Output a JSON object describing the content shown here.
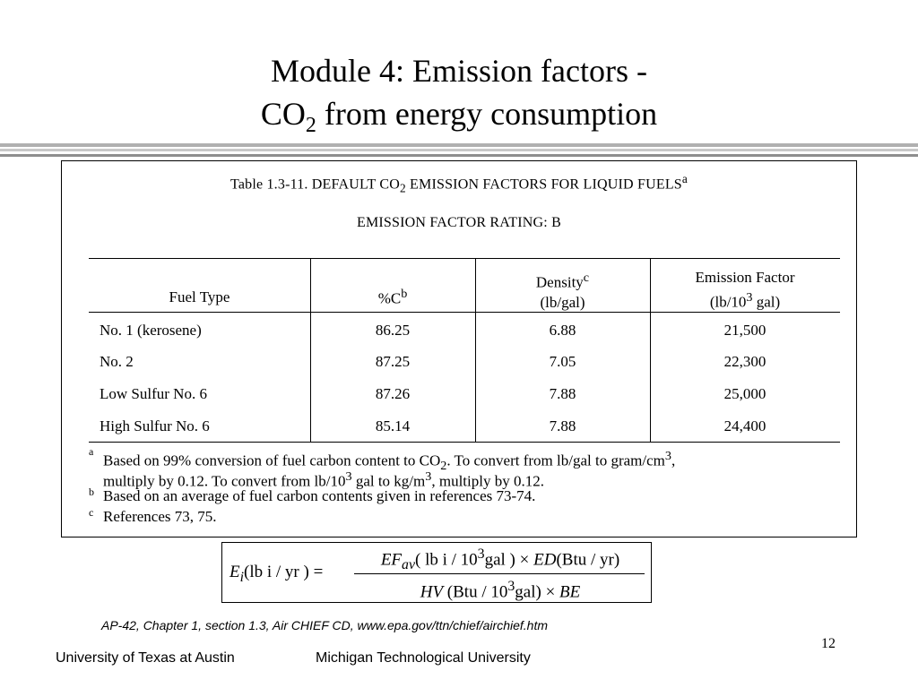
{
  "slide": {
    "title_line1": "Module 4: Emission factors -",
    "title_co": "CO",
    "title_sub": "2",
    "title_rest": " from energy consumption",
    "page_number": "12"
  },
  "table": {
    "title_prefix": "Table 1.3-11.  DEFAULT CO",
    "title_sub": "2",
    "title_suffix": " EMISSION FACTORS FOR LIQUID FUELS",
    "title_sup": "a",
    "rating": "EMISSION FACTOR RATING:  B",
    "headers": {
      "fuel_type": "Fuel Type",
      "carbon": "%C",
      "carbon_sup": "b",
      "density": "Density",
      "density_sup": "c",
      "density_unit": "(lb/gal)",
      "ef": "Emission Factor",
      "ef_unit_pre": "(lb/10",
      "ef_unit_sup": "3",
      "ef_unit_post": " gal)"
    },
    "rows": [
      {
        "fuel": "No. 1 (kerosene)",
        "carbon": "86.25",
        "density": "6.88",
        "ef": "21,500"
      },
      {
        "fuel": "No. 2",
        "carbon": "87.25",
        "density": "7.05",
        "ef": "22,300"
      },
      {
        "fuel": "Low Sulfur No. 6",
        "carbon": "87.26",
        "density": "7.88",
        "ef": "25,000"
      },
      {
        "fuel": "High Sulfur No. 6",
        "carbon": "85.14",
        "density": "7.88",
        "ef": "24,400"
      }
    ],
    "footnotes": {
      "a_mark": "a",
      "a_line1_pre": "Based on 99% conversion of fuel carbon content to CO",
      "a_line1_sub": "2",
      "a_line1_mid": ".  To convert from lb/gal to gram/cm",
      "a_line1_sup": "3",
      "a_line1_end": ",",
      "a_line2_pre": "multiply by 0.12.  To convert from lb/10",
      "a_line2_sup1": "3",
      "a_line2_mid": " gal to kg/m",
      "a_line2_sup2": "3",
      "a_line2_end": ", multiply by 0.12.",
      "b_mark": "b",
      "b_text": "Based on an average of fuel carbon contents given in references 73-74.",
      "c_mark": "c",
      "c_text": "References 73, 75."
    }
  },
  "formula": {
    "lhs_e": "E",
    "lhs_i": "i",
    "lhs_rest": "(lb  i  / yr ) =",
    "num_ef": "EF",
    "num_av": "av",
    "num_mid": "( lb  i / 10",
    "num_sup": "3",
    "num_gal": "gal ) × ",
    "num_ed": "ED",
    "num_end": "(Btu  / yr)",
    "den_hv": "HV",
    "den_mid": " (Btu  / 10",
    "den_sup": "3",
    "den_gal": "gal)  × ",
    "den_be": "BE"
  },
  "source": "AP-42, Chapter 1, section 1.3, Air CHIEF CD, www.epa.gov/ttn/chief/airchief.htm",
  "footer": {
    "left": "University of Texas at Austin",
    "right": "Michigan Technological University"
  }
}
